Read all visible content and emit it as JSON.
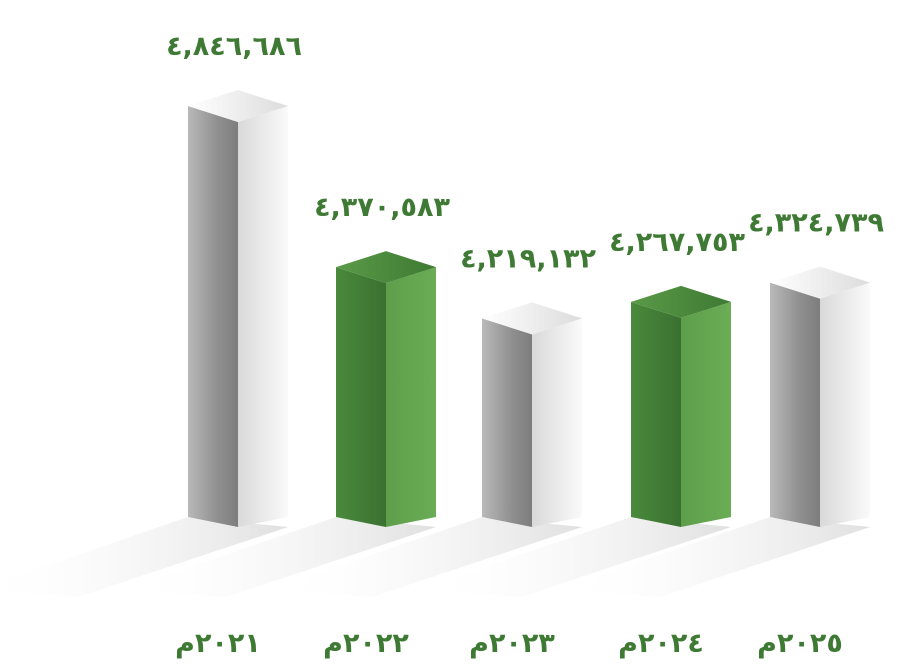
{
  "chart_data": {
    "type": "bar",
    "title": "",
    "xlabel": "",
    "ylabel": "",
    "categories": [
      "٢٠٢١م",
      "٢٠٢٢م",
      "٢٠٢٣م",
      "٢٠٢٤م",
      "٢٠٢٥م"
    ],
    "values": [
      4846686,
      4370583,
      4219132,
      4267753,
      4324739
    ],
    "value_labels": [
      "٤,٨٤٦,٦٨٦",
      "٤,٣٧٠,٥٨٣",
      "٤,٢١٩,١٣٢",
      "٤,٢٦٧,٧٥٣",
      "٤,٣٢٤,٧٣٩"
    ],
    "bar_styles": [
      "gray",
      "green",
      "gray",
      "green",
      "gray"
    ],
    "colors": {
      "label_text": "#3f7a35",
      "green_front": "#3f7a35",
      "green_side": "#62a24e",
      "green_top": "#4c8a3e",
      "gray_front": "#a9a9a9",
      "gray_side": "#f2f2f2",
      "gray_top": "#e6e6e6"
    },
    "grid": false,
    "legend": "none",
    "style": "3d-columns"
  }
}
